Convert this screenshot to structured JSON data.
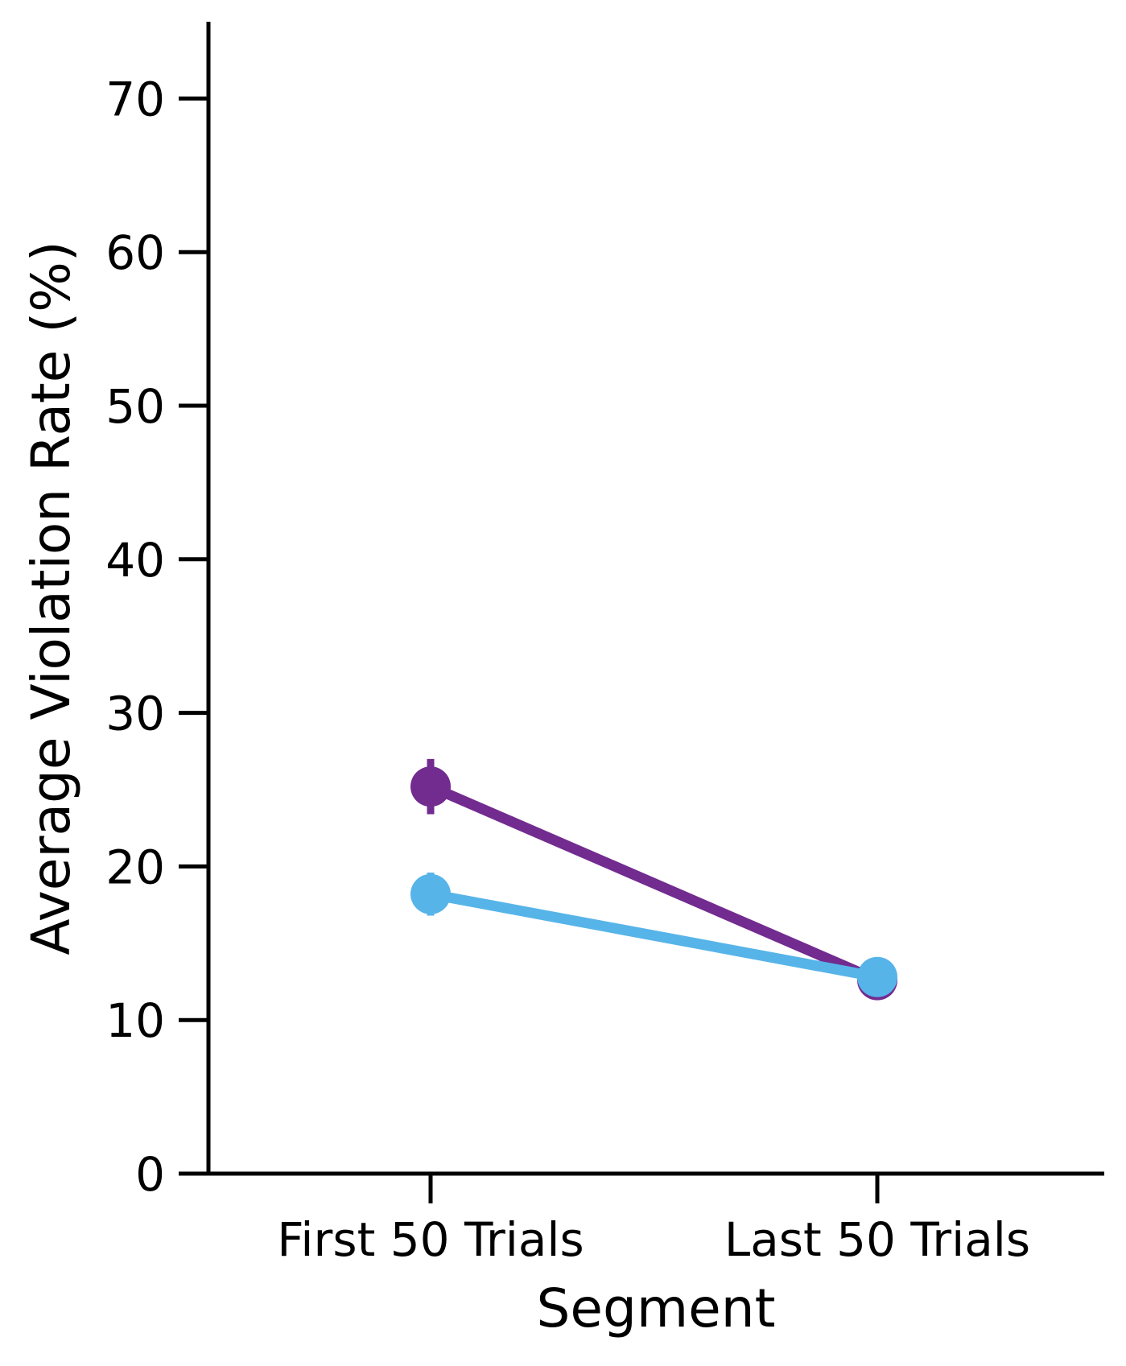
{
  "chart_data": {
    "type": "line",
    "xlabel": "Segment",
    "ylabel": "Average Violation Rate (%)",
    "categories": [
      "First 50 Trials",
      "Last 50 Trials"
    ],
    "ylim": [
      0,
      75
    ],
    "yticks": [
      "0",
      "10",
      "20",
      "30",
      "40",
      "50",
      "60",
      "70"
    ],
    "grid": false,
    "series": [
      {
        "color": "#722b8f",
        "values": [
          25.2,
          12.6
        ],
        "error": [
          1.8,
          1.0
        ]
      },
      {
        "color": "#57b4e9",
        "values": [
          18.2,
          12.8
        ],
        "error": [
          1.4,
          1.0
        ]
      }
    ]
  }
}
